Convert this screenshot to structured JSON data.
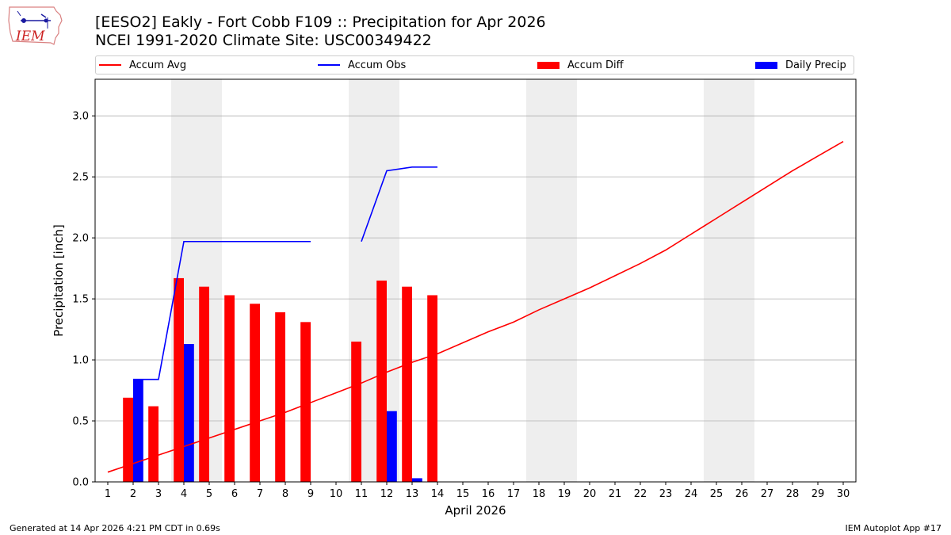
{
  "logo": {
    "text": "IEM"
  },
  "title": {
    "line1": "[EESO2] Eakly - Fort Cobb F109 :: Precipitation for Apr 2026",
    "line2": "NCEI 1991-2020 Climate Site: USC00349422"
  },
  "legend": [
    {
      "label": "Accum Avg",
      "kind": "line",
      "color": "#ff0000"
    },
    {
      "label": "Accum Obs",
      "kind": "line",
      "color": "#0000ff"
    },
    {
      "label": "Accum Diff",
      "kind": "bar",
      "color": "#ff0000"
    },
    {
      "label": "Daily Precip",
      "kind": "bar",
      "color": "#0000ff"
    }
  ],
  "footer": {
    "left": "Generated at 14 Apr 2026 4:21 PM CDT in 0.69s",
    "right": "IEM Autoplot App #17"
  },
  "chart_data": {
    "type": "bar",
    "xlabel": "April 2026",
    "ylabel": "Precipitation [inch]",
    "xlim": [
      0.5,
      30.5
    ],
    "ylim": [
      0,
      3.3
    ],
    "yticks": [
      0.0,
      0.5,
      1.0,
      1.5,
      2.0,
      2.5,
      3.0
    ],
    "ytick_labels": [
      "0.0",
      "0.5",
      "1.0",
      "1.5",
      "2.0",
      "2.5",
      "3.0"
    ],
    "x": [
      1,
      2,
      3,
      4,
      5,
      6,
      7,
      8,
      9,
      10,
      11,
      12,
      13,
      14,
      15,
      16,
      17,
      18,
      19,
      20,
      21,
      22,
      23,
      24,
      25,
      26,
      27,
      28,
      29,
      30
    ],
    "grid": "horizontal",
    "weekend_shading": [
      [
        4,
        5
      ],
      [
        11,
        12
      ],
      [
        18,
        19
      ],
      [
        25,
        26
      ]
    ],
    "series": [
      {
        "name": "Accum Avg",
        "kind": "line",
        "color": "#ff0000",
        "x": [
          1,
          2,
          3,
          4,
          5,
          6,
          7,
          8,
          9,
          10,
          11,
          12,
          13,
          14,
          15,
          16,
          17,
          18,
          19,
          20,
          21,
          22,
          23,
          24,
          25,
          26,
          27,
          28,
          29,
          30
        ],
        "values": [
          0.08,
          0.15,
          0.22,
          0.29,
          0.36,
          0.43,
          0.5,
          0.57,
          0.65,
          0.73,
          0.81,
          0.9,
          0.98,
          1.05,
          1.14,
          1.23,
          1.31,
          1.41,
          1.5,
          1.59,
          1.69,
          1.79,
          1.9,
          2.03,
          2.16,
          2.29,
          2.42,
          2.55,
          2.67,
          2.79
        ]
      },
      {
        "name": "Accum Obs",
        "kind": "line",
        "color": "#0000ff",
        "segments": [
          {
            "x": [
              2,
              3,
              4,
              5,
              6,
              7,
              8,
              9
            ],
            "values": [
              0.84,
              0.84,
              1.97,
              1.97,
              1.97,
              1.97,
              1.97,
              1.97
            ]
          },
          {
            "x": [
              11,
              12,
              13,
              14
            ],
            "values": [
              1.97,
              2.55,
              2.58,
              2.58
            ]
          }
        ]
      },
      {
        "name": "Accum Diff",
        "kind": "bar",
        "color": "#ff0000",
        "x": [
          2,
          3,
          4,
          5,
          6,
          7,
          8,
          9,
          11,
          12,
          13,
          14
        ],
        "values": [
          0.69,
          0.62,
          1.67,
          1.6,
          1.53,
          1.46,
          1.39,
          1.31,
          1.15,
          1.65,
          1.6,
          1.53
        ]
      },
      {
        "name": "Daily Precip",
        "kind": "bar",
        "color": "#0000ff",
        "x": [
          2,
          4,
          12,
          13
        ],
        "values": [
          0.84,
          1.13,
          0.58,
          0.03
        ]
      }
    ]
  }
}
